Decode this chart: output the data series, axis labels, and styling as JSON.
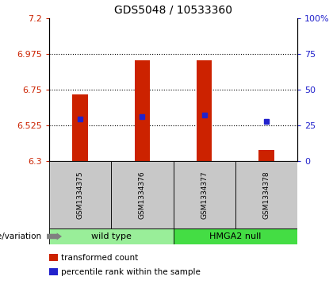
{
  "title": "GDS5048 / 10533360",
  "samples": [
    "GSM1334375",
    "GSM1334376",
    "GSM1334377",
    "GSM1334378"
  ],
  "bar_values": [
    6.72,
    6.935,
    6.935,
    6.37
  ],
  "bar_bottom": 6.3,
  "percentile_values": [
    6.565,
    6.582,
    6.588,
    6.548
  ],
  "ylim": [
    6.3,
    7.2
  ],
  "yticks_left": [
    6.3,
    6.525,
    6.75,
    6.975,
    7.2
  ],
  "ytick_labels_left": [
    "6.3",
    "6.525",
    "6.75",
    "6.975",
    "7.2"
  ],
  "ytick_labels_right": [
    "0",
    "25",
    "50",
    "75",
    "100%"
  ],
  "bar_color": "#cc2200",
  "percentile_color": "#2222cc",
  "groups": [
    {
      "label": "wild type",
      "samples": [
        0,
        1
      ],
      "color": "#99ee99"
    },
    {
      "label": "HMGA2 null",
      "samples": [
        2,
        3
      ],
      "color": "#44dd44"
    }
  ],
  "genotype_label": "genotype/variation",
  "legend_items": [
    {
      "color": "#cc2200",
      "label": "transformed count"
    },
    {
      "color": "#2222cc",
      "label": "percentile rank within the sample"
    }
  ],
  "left_tick_color": "#cc2200",
  "right_tick_color": "#2222cc",
  "bar_width": 0.25,
  "sample_box_color": "#c8c8c8",
  "grid_yvals": [
    6.525,
    6.75,
    6.975
  ]
}
